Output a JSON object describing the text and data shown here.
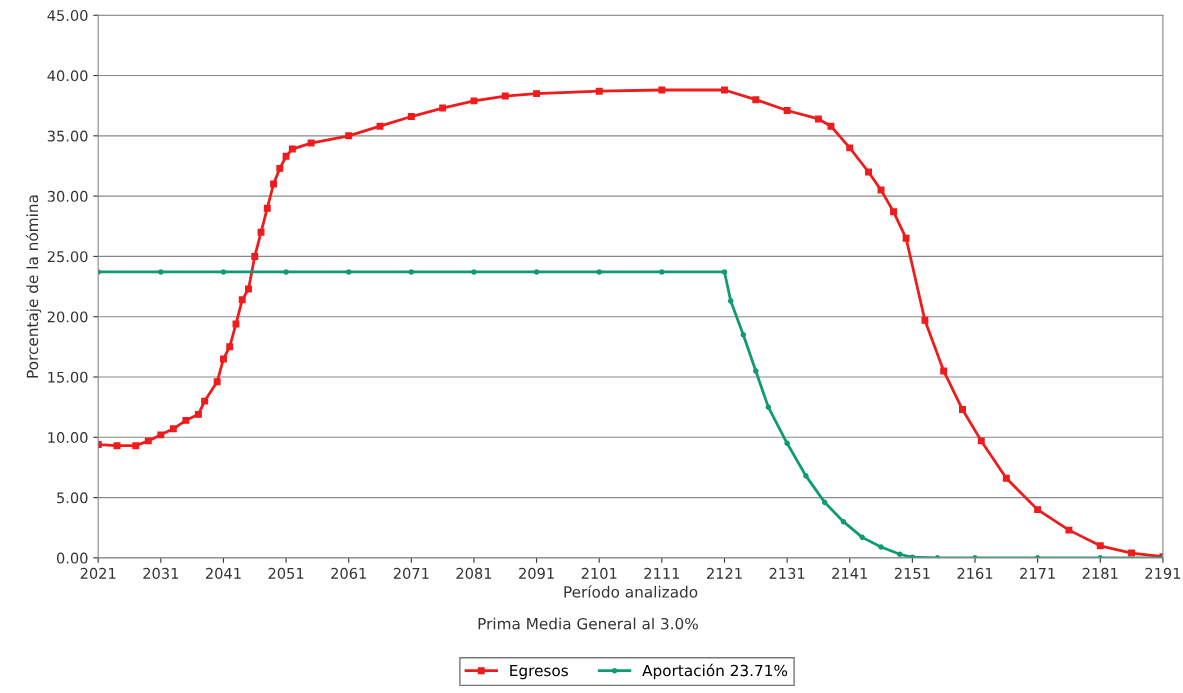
{
  "chart_data": {
    "type": "line",
    "xlabel": "Período analizado",
    "ylabel": "Porcentaje de la nómina",
    "annotations": [
      "Prima Media General al 3.0%"
    ],
    "xlim": [
      2021,
      2191
    ],
    "xticks": [
      2021,
      2031,
      2041,
      2051,
      2061,
      2071,
      2081,
      2091,
      2101,
      2111,
      2121,
      2131,
      2141,
      2151,
      2161,
      2171,
      2181,
      2191
    ],
    "ylim": [
      0,
      45
    ],
    "yticks": [
      {
        "value": 0,
        "label": "0.00"
      },
      {
        "value": 5,
        "label": "5.00"
      },
      {
        "value": 10,
        "label": "10.00"
      },
      {
        "value": 15,
        "label": "15.00"
      },
      {
        "value": 20,
        "label": "20.00"
      },
      {
        "value": 25,
        "label": "25.00"
      },
      {
        "value": 30,
        "label": "30.00"
      },
      {
        "value": 35,
        "label": "35.00"
      },
      {
        "value": 40,
        "label": "40.00"
      },
      {
        "value": 45,
        "label": "45.00"
      }
    ],
    "grid": "y",
    "legend": "bottom",
    "series": [
      {
        "name": "Egresos",
        "color": "#ee1c1c",
        "marker": "square",
        "x": [
          2021,
          2024,
          2027,
          2029,
          2031,
          2033,
          2035,
          2037,
          2038,
          2040,
          2041,
          2042,
          2043,
          2044,
          2045,
          2046,
          2047,
          2048,
          2049,
          2050,
          2051,
          2052,
          2055,
          2061,
          2066,
          2071,
          2076,
          2081,
          2086,
          2091,
          2101,
          2111,
          2121,
          2126,
          2131,
          2136,
          2138,
          2141,
          2144,
          2146,
          2148,
          2150,
          2153,
          2156,
          2159,
          2162,
          2166,
          2171,
          2176,
          2181,
          2186,
          2191
        ],
        "values": [
          9.4,
          9.3,
          9.3,
          9.7,
          10.2,
          10.7,
          11.4,
          11.9,
          13.0,
          14.6,
          16.5,
          17.5,
          19.4,
          21.4,
          22.3,
          25.0,
          27.0,
          29.0,
          31.0,
          32.3,
          33.3,
          33.9,
          34.4,
          35.0,
          35.8,
          36.6,
          37.3,
          37.9,
          38.3,
          38.5,
          38.7,
          38.8,
          38.8,
          38.0,
          37.1,
          36.4,
          35.8,
          34.0,
          32.0,
          30.5,
          28.7,
          26.5,
          19.7,
          15.5,
          12.3,
          9.7,
          6.6,
          4.0,
          2.3,
          1.0,
          0.4,
          0.1
        ]
      },
      {
        "name": "Aportación 23.71%",
        "color": "#0f9a74",
        "marker": "circle",
        "x": [
          2021,
          2031,
          2041,
          2051,
          2061,
          2071,
          2081,
          2091,
          2101,
          2111,
          2121,
          2122,
          2124,
          2126,
          2128,
          2131,
          2134,
          2137,
          2140,
          2143,
          2146,
          2149,
          2151,
          2155,
          2161,
          2171,
          2181,
          2191
        ],
        "values": [
          23.71,
          23.71,
          23.71,
          23.71,
          23.71,
          23.71,
          23.71,
          23.71,
          23.71,
          23.71,
          23.71,
          21.3,
          18.5,
          15.5,
          12.5,
          9.5,
          6.8,
          4.6,
          3.0,
          1.7,
          0.9,
          0.3,
          0.05,
          0,
          0,
          0,
          0,
          0
        ]
      }
    ]
  }
}
